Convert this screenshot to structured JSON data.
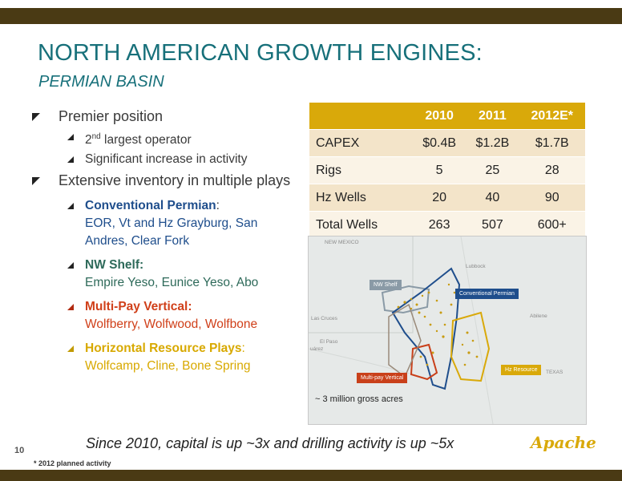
{
  "slide": {
    "title": "NORTH AMERICAN GROWTH ENGINES:",
    "subtitle": "PERMIAN BASIN",
    "page_number": "10",
    "footnote": "* 2012 planned activity",
    "summary": "Since 2010, capital is up ~3x and drilling activity is up ~5x",
    "logo": "Apache"
  },
  "bullets": {
    "premier": "Premier position",
    "operator_ordinal": "2",
    "operator_sup": "nd",
    "operator_rest": " largest operator",
    "activity": "Significant increase in activity",
    "inventory": "Extensive inventory in multiple plays",
    "plays": [
      {
        "name": "Conventional Permian",
        "sep": ":",
        "detail": "EOR, Vt and Hz Grayburg, San Andres, Clear Fork"
      },
      {
        "name": "NW Shelf:",
        "sep": "",
        "detail": "Empire Yeso, Eunice Yeso, Abo"
      },
      {
        "name": "Multi-Pay Vertical:",
        "sep": "",
        "detail": "Wolfberry, Wolfwood, Wolfbone"
      },
      {
        "name": "Horizontal Resource Plays",
        "sep": ":",
        "detail": "Wolfcamp, Cline, Bone Spring"
      }
    ]
  },
  "table": {
    "headers": [
      "",
      "2010",
      "2011",
      "2012E*"
    ],
    "rows": [
      [
        "CAPEX",
        "$0.4B",
        "$1.2B",
        "$1.7B"
      ],
      [
        "Rigs",
        "5",
        "25",
        "28"
      ],
      [
        "Hz Wells",
        "20",
        "40",
        "90"
      ],
      [
        "Total Wells",
        "263",
        "507",
        "600+"
      ]
    ]
  },
  "map": {
    "acres_label": "~ 3 million gross acres",
    "tags": {
      "nw_shelf": "NW Shelf",
      "conventional": "Conventional Permian",
      "multipay": "Multi-pay Vertical",
      "hz": "Hz Resource"
    },
    "cities": {
      "new_mexico": "NEW MEXICO",
      "lubbock": "Lubbock",
      "las_cruces": "Las Cruces",
      "el_paso": "El Paso",
      "juarez": "uárez",
      "abilene": "Abilene",
      "texas": "TEXAS"
    },
    "colors": {
      "nw_shelf": "#8a9aa6",
      "conventional": "#1f4e8c",
      "multipay": "#c9401a",
      "hz": "#d9a90a"
    }
  },
  "colors": {
    "title": "#17707a",
    "bars": "#4a3a14",
    "table_header": "#d9a90a"
  }
}
